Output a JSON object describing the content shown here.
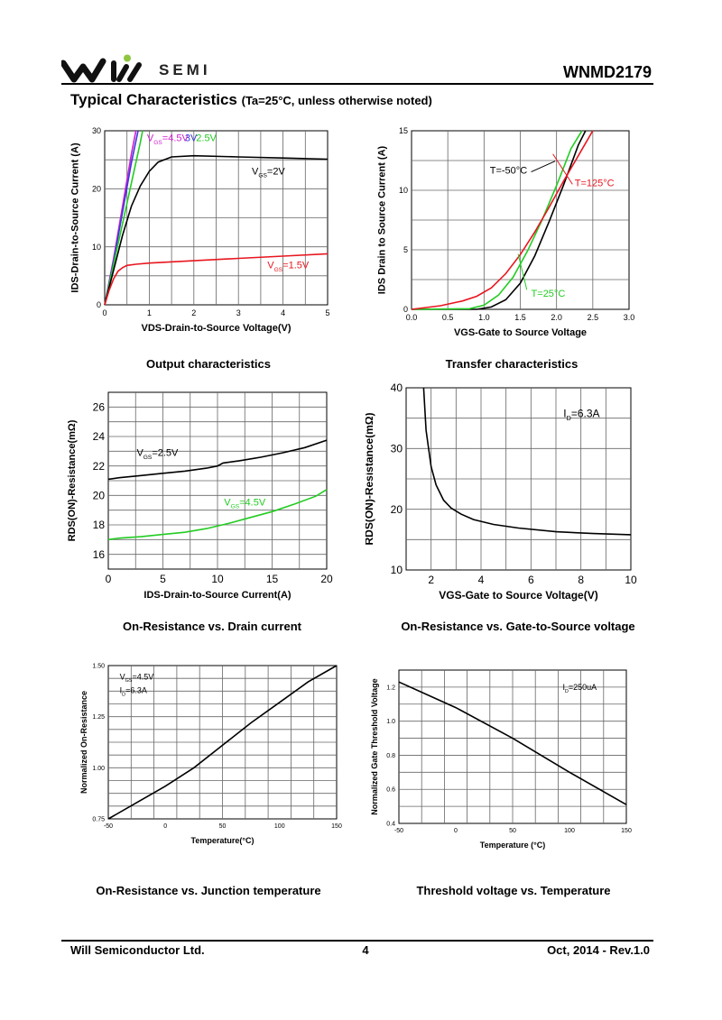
{
  "header": {
    "brand": "SEMI",
    "part_number": "WNMD2179",
    "section_title": "Typical Characteristics",
    "section_note": "(Ta=25°C, unless otherwise noted)"
  },
  "colors": {
    "black": "#000000",
    "red": "#e8161f",
    "green": "#22cc22",
    "magenta": "#d020d0",
    "blue": "#3a3ad8",
    "grid": "#555555",
    "logo_green": "#8fc63f"
  },
  "footer": {
    "company": "Will Semiconductor Ltd.",
    "page": "4",
    "date_rev": "Oct, 2014 - Rev.1.0"
  },
  "captions": {
    "c1": "Output characteristics",
    "c2": "Transfer characteristics",
    "c3": "On-Resistance vs. Drain current",
    "c4": "On-Resistance vs. Gate-to-Source voltage",
    "c5": "On-Resistance vs. Junction temperature",
    "c6": "Threshold voltage vs. Temperature"
  },
  "chart_data": [
    {
      "id": "output",
      "type": "line",
      "title": "Output characteristics",
      "xlabel": "V_DS-Drain-to-Source Voltage(V)",
      "ylabel": "I_DS-Drain-to-Source Current (A)",
      "xlim": [
        0,
        5
      ],
      "ylim": [
        0,
        30
      ],
      "xticks": [
        0,
        1,
        2,
        3,
        4,
        5
      ],
      "yticks": [
        0,
        10,
        20,
        30
      ],
      "xgrid": 10,
      "ygrid": 6,
      "series": [
        {
          "name": "VGS=4.5V",
          "color": "#d020d0",
          "x": [
            0,
            0.2,
            0.4,
            0.6,
            0.7
          ],
          "y": [
            0,
            8,
            17,
            26,
            30
          ]
        },
        {
          "name": "3V",
          "color": "#3a3ad8",
          "x": [
            0,
            0.2,
            0.4,
            0.6,
            0.75
          ],
          "y": [
            0,
            7.5,
            16,
            24.5,
            30
          ]
        },
        {
          "name": "2.5V",
          "color": "#22cc22",
          "x": [
            0,
            0.2,
            0.4,
            0.6,
            0.8,
            0.85
          ],
          "y": [
            0,
            7,
            14,
            21,
            28,
            30
          ]
        },
        {
          "name": "VGS=2V",
          "color": "#000000",
          "x": [
            0,
            0.2,
            0.4,
            0.6,
            0.8,
            1.0,
            1.2,
            1.5,
            2,
            3,
            4,
            5
          ],
          "y": [
            0,
            6,
            12,
            17,
            20.5,
            23,
            24.6,
            25.5,
            25.7,
            25.5,
            25.3,
            25.1
          ]
        },
        {
          "name": "VGS=1.5V",
          "color": "#e8161f",
          "x": [
            0,
            0.1,
            0.2,
            0.3,
            0.4,
            0.5,
            0.7,
            1,
            2,
            3,
            4,
            5
          ],
          "y": [
            0,
            2.5,
            4.5,
            5.8,
            6.4,
            6.8,
            7.0,
            7.2,
            7.6,
            8.0,
            8.4,
            8.8
          ]
        }
      ],
      "labels": [
        "VGS=4.5V",
        "3V",
        "2.5V",
        "VGS=2V",
        "VGS=1.5V"
      ]
    },
    {
      "id": "transfer",
      "type": "line",
      "title": "Transfer characteristics",
      "xlabel": "V_GS-Gate to Source Voltage",
      "ylabel": "I_DS Drain to Source Current (A)",
      "xlim": [
        0,
        3
      ],
      "ylim": [
        0,
        15
      ],
      "xticks": [
        0.0,
        0.5,
        1.0,
        1.5,
        2.0,
        2.5,
        3.0
      ],
      "yticks": [
        0,
        5,
        10,
        15
      ],
      "xgrid": 6,
      "ygrid": 6,
      "series": [
        {
          "name": "T=-50°C",
          "color": "#000000",
          "x": [
            0,
            0.9,
            1.1,
            1.3,
            1.5,
            1.7,
            1.9,
            2.1,
            2.3,
            2.4
          ],
          "y": [
            0,
            0,
            0.2,
            0.8,
            2.2,
            4.5,
            7.4,
            10.5,
            13.8,
            15
          ]
        },
        {
          "name": "T=25°C",
          "color": "#22cc22",
          "x": [
            0,
            0.8,
            1.0,
            1.2,
            1.4,
            1.6,
            1.8,
            2.0,
            2.2,
            2.35
          ],
          "y": [
            0,
            0.05,
            0.35,
            1.2,
            2.7,
            4.9,
            7.5,
            10.4,
            13.5,
            15
          ]
        },
        {
          "name": "T=125°C",
          "color": "#e8161f",
          "x": [
            0,
            0.4,
            0.7,
            0.9,
            1.1,
            1.3,
            1.5,
            1.7,
            1.9,
            2.1,
            2.3,
            2.5
          ],
          "y": [
            0,
            0.3,
            0.7,
            1.1,
            1.8,
            3.0,
            4.6,
            6.5,
            8.6,
            10.8,
            12.9,
            15
          ]
        }
      ],
      "labels": [
        "T=-50°C",
        "T=125°C",
        "T=25°C"
      ]
    },
    {
      "id": "rds_vs_id",
      "type": "line",
      "title": "On-Resistance vs. Drain current",
      "xlabel": "I_DS-Drain-to-Source Current(A)",
      "ylabel": "R_DS(ON)-Resistance(mΩ)",
      "xlim": [
        0,
        20
      ],
      "ylim": [
        15,
        27
      ],
      "xticks": [
        0,
        5,
        10,
        15,
        20
      ],
      "yticks": [
        16,
        18,
        20,
        22,
        24,
        26
      ],
      "xgrid": 8,
      "ygrid": 12,
      "series": [
        {
          "name": "VGS=2.5V",
          "color": "#000000",
          "x": [
            0,
            1,
            3,
            5,
            7,
            9,
            10,
            10.5,
            12,
            14,
            16,
            18,
            20
          ],
          "y": [
            21.1,
            21.2,
            21.35,
            21.5,
            21.65,
            21.85,
            22.0,
            22.2,
            22.35,
            22.6,
            22.9,
            23.25,
            23.75
          ]
        },
        {
          "name": "VGS=4.5V",
          "color": "#22cc22",
          "x": [
            0,
            1,
            3,
            5,
            7,
            9,
            11,
            13,
            15,
            17,
            19,
            20
          ],
          "y": [
            17.0,
            17.1,
            17.2,
            17.35,
            17.5,
            17.75,
            18.1,
            18.5,
            18.9,
            19.4,
            19.95,
            20.4
          ]
        }
      ],
      "labels": [
        "VGS=2.5V",
        "VGS=4.5V"
      ]
    },
    {
      "id": "rds_vs_vgs",
      "type": "line",
      "title": "On-Resistance vs. Gate-to-Source voltage",
      "xlabel": "V_GS-Gate to Source Voltage(V)",
      "ylabel": "R_DS(ON)-Resistance(mΩ)",
      "xlim": [
        1,
        10
      ],
      "ylim": [
        10,
        40
      ],
      "xticks": [
        2,
        4,
        6,
        8,
        10
      ],
      "yticks": [
        10,
        20,
        30,
        40
      ],
      "xgrid": 9,
      "ygrid": 6,
      "series": [
        {
          "name": "ID=6.3A",
          "color": "#000000",
          "x": [
            1.7,
            1.8,
            2.0,
            2.2,
            2.5,
            2.8,
            3.2,
            3.7,
            4.5,
            5.5,
            7,
            8.5,
            10
          ],
          "y": [
            40,
            33,
            27,
            24,
            21.5,
            20.2,
            19.2,
            18.3,
            17.5,
            16.9,
            16.3,
            16.0,
            15.8
          ]
        }
      ],
      "labels": [
        "ID=6.3A"
      ]
    },
    {
      "id": "norm_rds_vs_temp",
      "type": "line",
      "title": "On-Resistance vs. Junction temperature",
      "xlabel": "Temperature(°C)",
      "ylabel": "Normalized On-Resistance",
      "xlim": [
        -50,
        150
      ],
      "ylim": [
        0.75,
        1.5
      ],
      "xticks": [
        -50,
        0,
        50,
        100,
        150
      ],
      "yticks": [
        "0.75",
        "1.00",
        "1.25",
        "1.50"
      ],
      "xgrid": 10,
      "ygrid": 12,
      "series": [
        {
          "name": "VGS=4.5V ID=6.3A",
          "color": "#000000",
          "x": [
            -50,
            0,
            25,
            50,
            75,
            100,
            125,
            150
          ],
          "y": [
            0.74,
            0.91,
            1.0,
            1.11,
            1.22,
            1.32,
            1.42,
            1.5
          ]
        }
      ],
      "labels": [
        "VGS=4.5V",
        "ID=6.3A"
      ]
    },
    {
      "id": "vth_vs_temp",
      "type": "line",
      "title": "Threshold voltage vs. Temperature",
      "xlabel": "Temperature (°C)",
      "ylabel": "Normalized Gate Threshold Voltage",
      "xlim": [
        -50,
        150
      ],
      "ylim": [
        0.4,
        1.3
      ],
      "xticks": [
        -50,
        0,
        50,
        100,
        150
      ],
      "yticks": [
        "0.4",
        "0.6",
        "0.8",
        "1.0",
        "1.2"
      ],
      "xgrid": 10,
      "ygrid": 9,
      "series": [
        {
          "name": "ID=250uA",
          "color": "#000000",
          "x": [
            -50,
            0,
            50,
            100,
            150
          ],
          "y": [
            1.23,
            1.08,
            0.9,
            0.7,
            0.51
          ]
        }
      ],
      "labels": [
        "ID=250uA"
      ]
    }
  ]
}
